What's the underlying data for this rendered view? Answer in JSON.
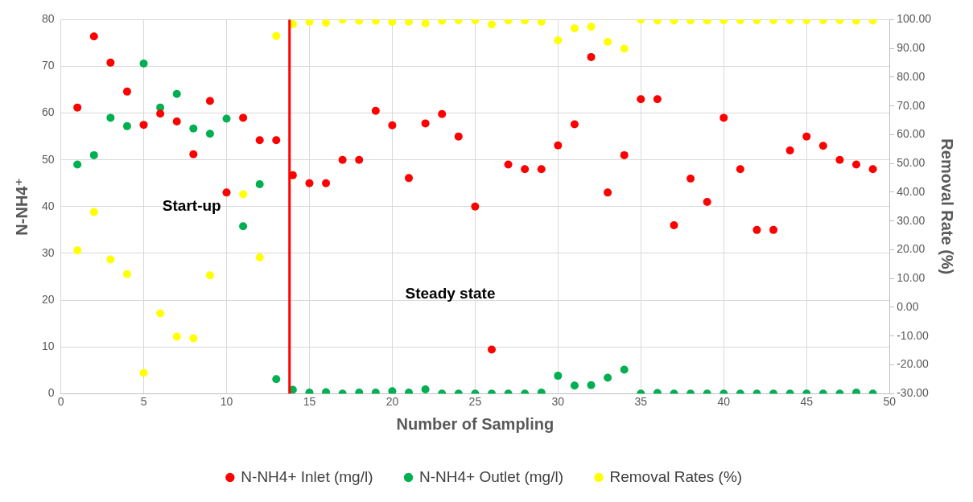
{
  "chart_data": {
    "type": "scatter",
    "xlabel": "Number of Sampling",
    "ylabel": "N-NH4⁺",
    "y2label": "Removal Rate (%)",
    "x": [
      1,
      2,
      3,
      4,
      5,
      6,
      7,
      8,
      9,
      10,
      11,
      12,
      13,
      14,
      15,
      16,
      17,
      18,
      19,
      20,
      21,
      22,
      23,
      24,
      25,
      26,
      27,
      28,
      29,
      30,
      31,
      32,
      33,
      34,
      35,
      36,
      37,
      38,
      39,
      40,
      41,
      42,
      43,
      44,
      45,
      46,
      47,
      48,
      49
    ],
    "series": [
      {
        "name": "N-NH4+ Inlet (mg/l)",
        "color": "#ff0000",
        "values": [
          61.2,
          76.4,
          70.8,
          64.6,
          57.5,
          59.9,
          58.2,
          51.2,
          62.6,
          43.0,
          59.0,
          54.2,
          54.2,
          46.7,
          45.0,
          45.0,
          50.0,
          50.0,
          60.5,
          57.4,
          46.1,
          57.8,
          59.8,
          55.0,
          40.0,
          9.4,
          49.0,
          48.0,
          48.0,
          53.1,
          57.6,
          72.0,
          43.0,
          51.0,
          63.0,
          63.0,
          36.0,
          46.0,
          41.0,
          59.0,
          48.0,
          35.0,
          35.0,
          52.0,
          55.0,
          53.0,
          50.0,
          49.0,
          48.0
        ]
      },
      {
        "name": "N-NH4+ Outlet (mg/l)",
        "color": "#00b050",
        "values": [
          49.0,
          51.0,
          59.0,
          57.2,
          70.6,
          61.2,
          64.1,
          56.7,
          55.6,
          58.8,
          35.8,
          44.8,
          3.1,
          0.8,
          0.2,
          0.3,
          0,
          0.2,
          0.2,
          0.5,
          0.2,
          0.9,
          0,
          0,
          0,
          0,
          0,
          0,
          0.2,
          3.8,
          1.7,
          1.8,
          3.4,
          5.1,
          0,
          0.1,
          0,
          0,
          0,
          0,
          0,
          0,
          0,
          0,
          0,
          0,
          0,
          0.2,
          0
        ]
      },
      {
        "name": "Removal Rates (%)",
        "color": "#ffff00",
        "axis": "y2",
        "values": [
          19.8,
          33.1,
          16.6,
          11.5,
          -22.8,
          -2.1,
          -10.2,
          -10.8,
          11.1,
          null,
          39.3,
          17.3,
          94.3,
          98.4,
          99.3,
          98.9,
          100,
          99.6,
          99.6,
          99.2,
          99.3,
          98.7,
          99.6,
          99.8,
          99.8,
          98.3,
          99.7,
          99.7,
          99.3,
          92.8,
          97,
          97.5,
          92.3,
          89.9,
          100,
          99.7,
          99.7,
          99.7,
          99.7,
          99.8,
          99.8,
          99.8,
          99.8,
          99.8,
          99.8,
          99.8,
          99.8,
          99.6,
          99.7
        ]
      }
    ],
    "xlim": [
      0,
      50
    ],
    "xticks": [
      0,
      5,
      10,
      15,
      20,
      25,
      30,
      35,
      40,
      45,
      50
    ],
    "ylim": [
      0,
      80
    ],
    "yticks": [
      0,
      10,
      20,
      30,
      40,
      50,
      60,
      70,
      80
    ],
    "y2lim": [
      -30,
      100
    ],
    "y2ticks": [
      {
        "value": -30,
        "label": "-30.00"
      },
      {
        "value": -20,
        "label": "-20.00"
      },
      {
        "value": -10,
        "label": "-10.00"
      },
      {
        "value": 0,
        "label": "0.00"
      },
      {
        "value": 10,
        "label": "10.00"
      },
      {
        "value": 20,
        "label": "20.00"
      },
      {
        "value": 30,
        "label": "30.00"
      },
      {
        "value": 40,
        "label": "40.00"
      },
      {
        "value": 50,
        "label": "50.00"
      },
      {
        "value": 60,
        "label": "60.00"
      },
      {
        "value": 70,
        "label": "70.00"
      },
      {
        "value": 80,
        "label": "80.00"
      },
      {
        "value": 90,
        "label": "90.00"
      },
      {
        "value": 100,
        "label": "100.00"
      }
    ],
    "ref_lines": [
      {
        "axis": "x",
        "value": 13.8,
        "color": "#ff0000"
      }
    ],
    "annotations": [
      "Start-up",
      "Steady state"
    ],
    "grid": true,
    "legend": "bottom",
    "marker": "circle"
  }
}
